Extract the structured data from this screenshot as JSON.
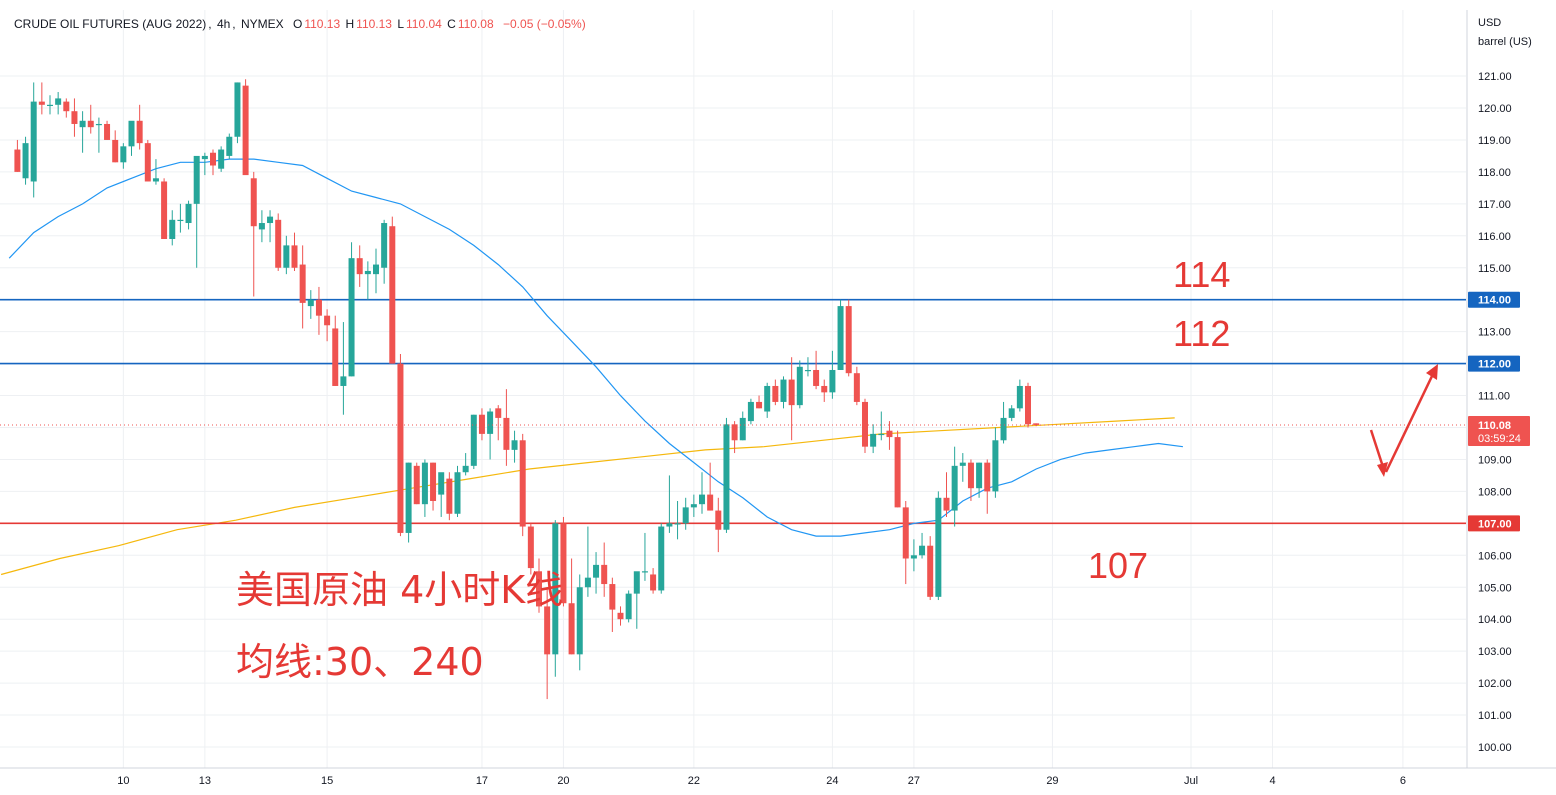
{
  "header": {
    "symbol": "CRUDE OIL FUTURES (AUG 2022)",
    "interval": "4h",
    "exchange": "NYMEX",
    "open_label": "O",
    "open": "110.13",
    "high_label": "H",
    "high": "110.13",
    "low_label": "L",
    "low": "110.04",
    "close_label": "C",
    "close": "110.08",
    "change": "−0.05 (−0.05%)"
  },
  "axis": {
    "currency": "USD",
    "unit": "barrel (US)"
  },
  "price_badges": {
    "last_price": "110.08",
    "countdown": "03:59:24"
  },
  "annotations": {
    "level_114": "114",
    "level_112": "112",
    "level_107": "107",
    "title_line1": "美国原油 4小时K线",
    "title_line2": "均线:30、240"
  },
  "colors": {
    "up": "#26a69a",
    "down": "#ef5350",
    "ma30": "#2196f3",
    "ma240": "#f5b80d",
    "hline_blue": "#1565c0",
    "hline_red": "#e53935",
    "annotation": "#e53935",
    "grid": "#eef0f3",
    "text": "#131722"
  },
  "chart_data": {
    "type": "candlestick",
    "timeframe": "4h",
    "yaxis": {
      "ticks": [
        "100.00",
        "101.00",
        "102.00",
        "103.00",
        "104.00",
        "105.00",
        "106.00",
        "107.00",
        "108.00",
        "109.00",
        "110.00",
        "111.00",
        "112.00",
        "113.00",
        "114.00",
        "115.00",
        "116.00",
        "117.00",
        "118.00",
        "119.00",
        "120.00",
        "121.00"
      ],
      "range": [
        99.3,
        122.0
      ]
    },
    "xaxis": {
      "ticks": [
        {
          "label": "10",
          "index": 13
        },
        {
          "label": "13",
          "index": 23
        },
        {
          "label": "15",
          "index": 38
        },
        {
          "label": "17",
          "index": 57
        },
        {
          "label": "20",
          "index": 67
        },
        {
          "label": "22",
          "index": 83
        },
        {
          "label": "24",
          "index": 100
        },
        {
          "label": "27",
          "index": 110
        },
        {
          "label": "29",
          "index": 127
        },
        {
          "label": "Jul",
          "index": 144
        },
        {
          "label": "4",
          "index": 154
        },
        {
          "label": "6",
          "index": 170
        }
      ]
    },
    "horizontal_lines": [
      {
        "value": 114.0,
        "label": "114.00",
        "color": "blue"
      },
      {
        "value": 112.0,
        "label": "112.00",
        "color": "blue"
      },
      {
        "value": 107.0,
        "label": "107.00",
        "color": "red"
      }
    ],
    "last_price": 110.08,
    "candles": [
      {
        "o": 118.7,
        "h": 119.0,
        "l": 118.0,
        "c": 118.0
      },
      {
        "o": 117.8,
        "h": 119.1,
        "l": 117.6,
        "c": 118.9
      },
      {
        "o": 117.7,
        "h": 120.8,
        "l": 117.2,
        "c": 120.2
      },
      {
        "o": 120.2,
        "h": 120.8,
        "l": 119.8,
        "c": 120.1
      },
      {
        "o": 120.1,
        "h": 120.4,
        "l": 119.8,
        "c": 120.1
      },
      {
        "o": 120.1,
        "h": 120.5,
        "l": 119.8,
        "c": 120.3
      },
      {
        "o": 120.2,
        "h": 120.3,
        "l": 119.7,
        "c": 119.9
      },
      {
        "o": 119.9,
        "h": 120.3,
        "l": 119.1,
        "c": 119.5
      },
      {
        "o": 119.4,
        "h": 119.9,
        "l": 118.6,
        "c": 119.6
      },
      {
        "o": 119.6,
        "h": 120.1,
        "l": 119.2,
        "c": 119.4
      },
      {
        "o": 119.5,
        "h": 119.7,
        "l": 118.6,
        "c": 119.5
      },
      {
        "o": 119.5,
        "h": 119.6,
        "l": 119.0,
        "c": 119.0
      },
      {
        "o": 119.0,
        "h": 119.3,
        "l": 118.3,
        "c": 118.3
      },
      {
        "o": 118.3,
        "h": 118.9,
        "l": 118.1,
        "c": 118.8
      },
      {
        "o": 118.8,
        "h": 119.4,
        "l": 118.5,
        "c": 119.6
      },
      {
        "o": 119.6,
        "h": 120.1,
        "l": 118.7,
        "c": 118.9
      },
      {
        "o": 118.9,
        "h": 119.0,
        "l": 117.7,
        "c": 117.7
      },
      {
        "o": 117.7,
        "h": 118.4,
        "l": 117.6,
        "c": 117.8
      },
      {
        "o": 117.7,
        "h": 117.8,
        "l": 115.9,
        "c": 115.9
      },
      {
        "o": 115.9,
        "h": 116.8,
        "l": 115.7,
        "c": 116.5
      },
      {
        "o": 116.5,
        "h": 117.0,
        "l": 116.1,
        "c": 116.5
      },
      {
        "o": 116.4,
        "h": 117.1,
        "l": 116.2,
        "c": 117.0
      },
      {
        "o": 117.0,
        "h": 118.4,
        "l": 115.0,
        "c": 118.5
      },
      {
        "o": 118.4,
        "h": 118.6,
        "l": 117.9,
        "c": 118.5
      },
      {
        "o": 118.6,
        "h": 118.7,
        "l": 117.9,
        "c": 118.2
      },
      {
        "o": 118.1,
        "h": 118.8,
        "l": 118.0,
        "c": 118.7
      },
      {
        "o": 118.5,
        "h": 119.2,
        "l": 118.4,
        "c": 119.1
      },
      {
        "o": 119.1,
        "h": 120.8,
        "l": 118.9,
        "c": 120.8
      },
      {
        "o": 120.7,
        "h": 120.9,
        "l": 118.0,
        "c": 117.9
      },
      {
        "o": 117.8,
        "h": 118.0,
        "l": 114.1,
        "c": 116.3
      },
      {
        "o": 116.2,
        "h": 116.8,
        "l": 115.8,
        "c": 116.4
      },
      {
        "o": 116.4,
        "h": 116.8,
        "l": 115.8,
        "c": 116.6
      },
      {
        "o": 116.5,
        "h": 116.7,
        "l": 114.9,
        "c": 115.0
      },
      {
        "o": 115.0,
        "h": 116.0,
        "l": 114.8,
        "c": 115.7
      },
      {
        "o": 115.7,
        "h": 116.1,
        "l": 114.9,
        "c": 115.0
      },
      {
        "o": 115.1,
        "h": 115.7,
        "l": 113.1,
        "c": 113.9
      },
      {
        "o": 113.8,
        "h": 114.3,
        "l": 113.4,
        "c": 114.0
      },
      {
        "o": 114.0,
        "h": 114.4,
        "l": 112.9,
        "c": 113.5
      },
      {
        "o": 113.5,
        "h": 113.7,
        "l": 112.7,
        "c": 113.2
      },
      {
        "o": 113.1,
        "h": 113.5,
        "l": 111.3,
        "c": 111.3
      },
      {
        "o": 111.3,
        "h": 113.3,
        "l": 110.4,
        "c": 111.6
      },
      {
        "o": 111.6,
        "h": 115.8,
        "l": 111.6,
        "c": 115.3
      },
      {
        "o": 115.3,
        "h": 115.7,
        "l": 114.4,
        "c": 114.8
      },
      {
        "o": 114.8,
        "h": 115.2,
        "l": 114.0,
        "c": 114.9
      },
      {
        "o": 114.8,
        "h": 115.6,
        "l": 114.2,
        "c": 115.1
      },
      {
        "o": 115.0,
        "h": 116.5,
        "l": 114.5,
        "c": 116.4
      },
      {
        "o": 116.3,
        "h": 116.6,
        "l": 112.0,
        "c": 112.0
      },
      {
        "o": 112.0,
        "h": 112.3,
        "l": 106.6,
        "c": 106.7
      },
      {
        "o": 106.7,
        "h": 108.9,
        "l": 106.4,
        "c": 108.9
      },
      {
        "o": 108.8,
        "h": 108.9,
        "l": 107.6,
        "c": 107.6
      },
      {
        "o": 107.6,
        "h": 109.0,
        "l": 107.2,
        "c": 108.9
      },
      {
        "o": 108.9,
        "h": 108.9,
        "l": 107.4,
        "c": 107.7
      },
      {
        "o": 107.9,
        "h": 108.5,
        "l": 107.2,
        "c": 108.6
      },
      {
        "o": 108.4,
        "h": 108.6,
        "l": 107.1,
        "c": 107.3
      },
      {
        "o": 107.3,
        "h": 108.8,
        "l": 107.2,
        "c": 108.6
      },
      {
        "o": 108.6,
        "h": 109.2,
        "l": 108.5,
        "c": 108.8
      },
      {
        "o": 108.8,
        "h": 110.4,
        "l": 108.7,
        "c": 110.4
      },
      {
        "o": 110.4,
        "h": 110.6,
        "l": 109.6,
        "c": 109.8
      },
      {
        "o": 109.8,
        "h": 110.6,
        "l": 109.0,
        "c": 110.5
      },
      {
        "o": 110.6,
        "h": 110.7,
        "l": 109.6,
        "c": 110.3
      },
      {
        "o": 110.3,
        "h": 111.2,
        "l": 108.8,
        "c": 109.3
      },
      {
        "o": 109.3,
        "h": 109.9,
        "l": 108.9,
        "c": 109.6
      },
      {
        "o": 109.6,
        "h": 109.8,
        "l": 106.6,
        "c": 106.9
      },
      {
        "o": 106.9,
        "h": 107.0,
        "l": 105.4,
        "c": 105.6
      },
      {
        "o": 105.5,
        "h": 105.9,
        "l": 104.2,
        "c": 104.4
      },
      {
        "o": 104.4,
        "h": 105.0,
        "l": 101.5,
        "c": 102.9
      },
      {
        "o": 102.9,
        "h": 107.1,
        "l": 102.2,
        "c": 107.0
      },
      {
        "o": 107.0,
        "h": 107.2,
        "l": 104.4,
        "c": 104.5
      },
      {
        "o": 104.5,
        "h": 105.9,
        "l": 102.9,
        "c": 102.9
      },
      {
        "o": 102.9,
        "h": 105.4,
        "l": 102.4,
        "c": 105.0
      },
      {
        "o": 105.0,
        "h": 106.9,
        "l": 104.7,
        "c": 105.3
      },
      {
        "o": 105.3,
        "h": 106.1,
        "l": 104.8,
        "c": 105.7
      },
      {
        "o": 105.7,
        "h": 106.4,
        "l": 104.7,
        "c": 105.1
      },
      {
        "o": 105.1,
        "h": 105.3,
        "l": 103.6,
        "c": 104.3
      },
      {
        "o": 104.2,
        "h": 104.4,
        "l": 103.8,
        "c": 104.0
      },
      {
        "o": 104.0,
        "h": 104.9,
        "l": 103.9,
        "c": 104.8
      },
      {
        "o": 104.8,
        "h": 105.4,
        "l": 103.7,
        "c": 105.5
      },
      {
        "o": 105.5,
        "h": 106.7,
        "l": 105.2,
        "c": 105.5
      },
      {
        "o": 105.4,
        "h": 105.6,
        "l": 104.8,
        "c": 104.9
      },
      {
        "o": 104.9,
        "h": 107.0,
        "l": 104.8,
        "c": 106.9
      },
      {
        "o": 106.9,
        "h": 108.5,
        "l": 106.7,
        "c": 107.0
      },
      {
        "o": 107.0,
        "h": 107.7,
        "l": 106.5,
        "c": 107.0
      },
      {
        "o": 107.0,
        "h": 107.8,
        "l": 106.8,
        "c": 107.5
      },
      {
        "o": 107.5,
        "h": 107.9,
        "l": 107.2,
        "c": 107.6
      },
      {
        "o": 107.6,
        "h": 108.6,
        "l": 107.3,
        "c": 107.9
      },
      {
        "o": 107.9,
        "h": 108.9,
        "l": 107.4,
        "c": 107.4
      },
      {
        "o": 107.4,
        "h": 107.8,
        "l": 106.1,
        "c": 106.8
      },
      {
        "o": 106.8,
        "h": 110.3,
        "l": 106.7,
        "c": 110.1
      },
      {
        "o": 110.1,
        "h": 110.2,
        "l": 109.2,
        "c": 109.6
      },
      {
        "o": 109.6,
        "h": 110.5,
        "l": 109.6,
        "c": 110.3
      },
      {
        "o": 110.2,
        "h": 110.9,
        "l": 110.1,
        "c": 110.8
      },
      {
        "o": 110.8,
        "h": 111.0,
        "l": 110.6,
        "c": 110.6
      },
      {
        "o": 110.5,
        "h": 111.4,
        "l": 110.3,
        "c": 111.3
      },
      {
        "o": 111.3,
        "h": 111.5,
        "l": 110.7,
        "c": 110.8
      },
      {
        "o": 110.8,
        "h": 111.6,
        "l": 110.6,
        "c": 111.5
      },
      {
        "o": 111.5,
        "h": 112.2,
        "l": 109.6,
        "c": 110.7
      },
      {
        "o": 110.7,
        "h": 112.1,
        "l": 110.6,
        "c": 111.9
      },
      {
        "o": 111.8,
        "h": 112.2,
        "l": 111.6,
        "c": 111.8
      },
      {
        "o": 111.8,
        "h": 112.4,
        "l": 111.2,
        "c": 111.3
      },
      {
        "o": 111.3,
        "h": 111.5,
        "l": 110.8,
        "c": 111.1
      },
      {
        "o": 111.1,
        "h": 112.4,
        "l": 110.9,
        "c": 111.8
      },
      {
        "o": 111.8,
        "h": 114.0,
        "l": 111.8,
        "c": 113.8
      },
      {
        "o": 113.8,
        "h": 114.0,
        "l": 111.6,
        "c": 111.7
      },
      {
        "o": 111.7,
        "h": 111.9,
        "l": 110.7,
        "c": 110.8
      },
      {
        "o": 110.8,
        "h": 110.9,
        "l": 109.2,
        "c": 109.4
      },
      {
        "o": 109.4,
        "h": 110.1,
        "l": 109.2,
        "c": 109.8
      },
      {
        "o": 109.8,
        "h": 110.5,
        "l": 109.6,
        "c": 109.8
      },
      {
        "o": 109.9,
        "h": 110.2,
        "l": 109.3,
        "c": 109.7
      },
      {
        "o": 109.7,
        "h": 109.9,
        "l": 107.5,
        "c": 107.5
      },
      {
        "o": 107.5,
        "h": 107.7,
        "l": 105.1,
        "c": 105.9
      },
      {
        "o": 105.9,
        "h": 106.5,
        "l": 105.5,
        "c": 106.0
      },
      {
        "o": 106.0,
        "h": 106.7,
        "l": 105.9,
        "c": 106.3
      },
      {
        "o": 106.3,
        "h": 106.6,
        "l": 104.6,
        "c": 104.7
      },
      {
        "o": 104.7,
        "h": 108.0,
        "l": 104.6,
        "c": 107.8
      },
      {
        "o": 107.8,
        "h": 108.6,
        "l": 107.2,
        "c": 107.4
      },
      {
        "o": 107.4,
        "h": 109.4,
        "l": 106.9,
        "c": 108.8
      },
      {
        "o": 108.8,
        "h": 109.2,
        "l": 108.3,
        "c": 108.9
      },
      {
        "o": 108.9,
        "h": 109.0,
        "l": 107.7,
        "c": 108.1
      },
      {
        "o": 108.1,
        "h": 108.9,
        "l": 107.8,
        "c": 108.9
      },
      {
        "o": 108.9,
        "h": 109.0,
        "l": 107.3,
        "c": 108.0
      },
      {
        "o": 108.0,
        "h": 110.0,
        "l": 107.8,
        "c": 109.6
      },
      {
        "o": 109.6,
        "h": 110.8,
        "l": 109.5,
        "c": 110.3
      },
      {
        "o": 110.3,
        "h": 110.7,
        "l": 110.2,
        "c": 110.6
      },
      {
        "o": 110.6,
        "h": 111.5,
        "l": 110.5,
        "c": 111.3
      },
      {
        "o": 111.3,
        "h": 111.4,
        "l": 110.0,
        "c": 110.1
      },
      {
        "o": 110.13,
        "h": 110.13,
        "l": 110.04,
        "c": 110.08
      }
    ],
    "ma30": [
      115.3,
      116.1,
      116.6,
      117.0,
      117.5,
      117.8,
      118.1,
      118.3,
      118.3,
      118.4,
      118.4,
      118.3,
      118.2,
      117.8,
      117.4,
      117.2,
      117.0,
      116.6,
      116.2,
      115.7,
      115.1,
      114.4,
      113.5,
      112.7,
      111.9,
      111.0,
      110.2,
      109.5,
      108.9,
      108.3,
      107.8,
      107.2,
      106.8,
      106.6,
      106.6,
      106.7,
      106.8,
      107.0,
      107.1,
      107.7,
      108.1,
      108.3,
      108.7,
      109.0,
      109.2,
      109.3,
      109.4,
      109.5,
      109.4
    ],
    "ma240": [
      105.4,
      105.9,
      106.3,
      106.8,
      107.1,
      107.5,
      107.8,
      108.1,
      108.4,
      108.7,
      108.9,
      109.1,
      109.3,
      109.4,
      109.6,
      109.8,
      109.9,
      110.0,
      110.1,
      110.2,
      110.3
    ]
  }
}
